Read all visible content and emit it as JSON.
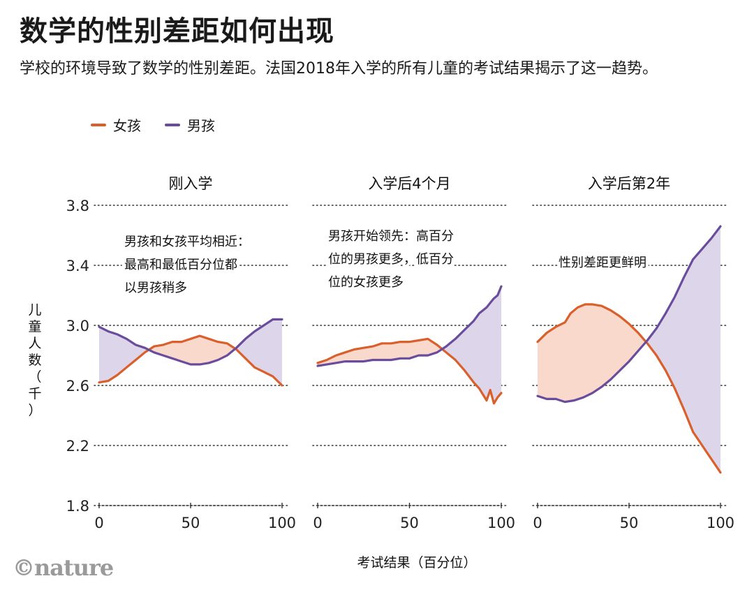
{
  "title": "数学的性别差距如何出现",
  "subtitle": "学校的环境导致了数学的性别差距。法国2018年入学的所有儿童的考试结果揭示了这一趋势。",
  "credit": "©nature",
  "colors": {
    "girls": "#d95f2b",
    "boys": "#6a4c9c",
    "girls_fill": "#f9d9cc",
    "boys_fill": "#ddd5ea",
    "grid": "#333333"
  },
  "legend": [
    {
      "key": "girls",
      "label": "女孩"
    },
    {
      "key": "boys",
      "label": "男孩"
    }
  ],
  "chart_data": {
    "type": "line",
    "ylabel": "儿童人数（千）",
    "xlabel": "考试结果（百分位）",
    "ylim": [
      1.8,
      3.8
    ],
    "yticks": [
      1.8,
      2.2,
      2.6,
      3.0,
      3.4,
      3.8
    ],
    "xlim": [
      0,
      100
    ],
    "xticks": [
      0,
      50,
      100
    ],
    "grid": "dotted horizontal",
    "legend_position": "top-left",
    "panels": [
      {
        "title": "刚入学",
        "annotation": [
          "男孩和女孩平均相近：",
          "最高和最低百分位都",
          "以男孩稍多"
        ],
        "series": [
          {
            "key": "girls",
            "name": "女孩",
            "x": [
              0,
              5,
              10,
              15,
              20,
              25,
              30,
              35,
              40,
              45,
              50,
              55,
              60,
              65,
              70,
              75,
              80,
              85,
              90,
              95,
              100
            ],
            "y": [
              2.62,
              2.63,
              2.67,
              2.72,
              2.77,
              2.82,
              2.86,
              2.87,
              2.89,
              2.89,
              2.91,
              2.93,
              2.91,
              2.89,
              2.88,
              2.84,
              2.78,
              2.72,
              2.69,
              2.66,
              2.6
            ]
          },
          {
            "key": "boys",
            "name": "男孩",
            "x": [
              0,
              5,
              10,
              15,
              20,
              25,
              30,
              35,
              40,
              45,
              50,
              55,
              60,
              65,
              70,
              75,
              80,
              85,
              90,
              95,
              100
            ],
            "y": [
              2.99,
              2.96,
              2.94,
              2.91,
              2.87,
              2.85,
              2.82,
              2.8,
              2.78,
              2.76,
              2.74,
              2.74,
              2.75,
              2.77,
              2.8,
              2.85,
              2.91,
              2.96,
              3.0,
              3.04,
              3.04
            ]
          }
        ]
      },
      {
        "title": "入学后4个月",
        "annotation": [
          "男孩开始领先：高百分",
          "位的男孩更多，低百分",
          "位的女孩更多"
        ],
        "series": [
          {
            "key": "girls",
            "name": "女孩",
            "x": [
              0,
              5,
              10,
              15,
              20,
              25,
              30,
              35,
              40,
              45,
              50,
              55,
              60,
              65,
              70,
              75,
              80,
              85,
              88,
              90,
              92,
              94,
              96,
              98,
              100
            ],
            "y": [
              2.75,
              2.77,
              2.8,
              2.82,
              2.84,
              2.85,
              2.86,
              2.88,
              2.88,
              2.89,
              2.89,
              2.9,
              2.91,
              2.87,
              2.82,
              2.77,
              2.7,
              2.62,
              2.58,
              2.54,
              2.5,
              2.57,
              2.48,
              2.52,
              2.55
            ]
          },
          {
            "key": "boys",
            "name": "男孩",
            "x": [
              0,
              5,
              10,
              15,
              20,
              25,
              30,
              35,
              40,
              45,
              50,
              55,
              60,
              65,
              70,
              75,
              80,
              85,
              88,
              90,
              92,
              94,
              96,
              98,
              100
            ],
            "y": [
              2.73,
              2.74,
              2.75,
              2.76,
              2.76,
              2.76,
              2.77,
              2.77,
              2.77,
              2.78,
              2.78,
              2.8,
              2.8,
              2.82,
              2.86,
              2.91,
              2.97,
              3.03,
              3.08,
              3.1,
              3.12,
              3.15,
              3.18,
              3.2,
              3.26
            ]
          }
        ]
      },
      {
        "title": "入学后第2年",
        "annotation": [
          "性别差距更鲜明"
        ],
        "series": [
          {
            "key": "girls",
            "name": "女孩",
            "x": [
              0,
              5,
              10,
              15,
              18,
              22,
              26,
              30,
              35,
              40,
              45,
              50,
              55,
              60,
              65,
              70,
              75,
              80,
              85,
              90,
              95,
              100
            ],
            "y": [
              2.89,
              2.95,
              2.99,
              3.02,
              3.08,
              3.12,
              3.14,
              3.14,
              3.13,
              3.1,
              3.06,
              3.01,
              2.95,
              2.88,
              2.8,
              2.7,
              2.58,
              2.44,
              2.29,
              2.2,
              2.11,
              2.02
            ]
          },
          {
            "key": "boys",
            "name": "男孩",
            "x": [
              0,
              5,
              10,
              15,
              20,
              25,
              30,
              35,
              40,
              45,
              50,
              55,
              60,
              65,
              70,
              75,
              80,
              85,
              90,
              95,
              100
            ],
            "y": [
              2.53,
              2.51,
              2.51,
              2.49,
              2.5,
              2.52,
              2.55,
              2.59,
              2.64,
              2.7,
              2.76,
              2.83,
              2.9,
              2.98,
              3.08,
              3.19,
              3.32,
              3.44,
              3.51,
              3.58,
              3.66
            ]
          }
        ]
      }
    ]
  }
}
